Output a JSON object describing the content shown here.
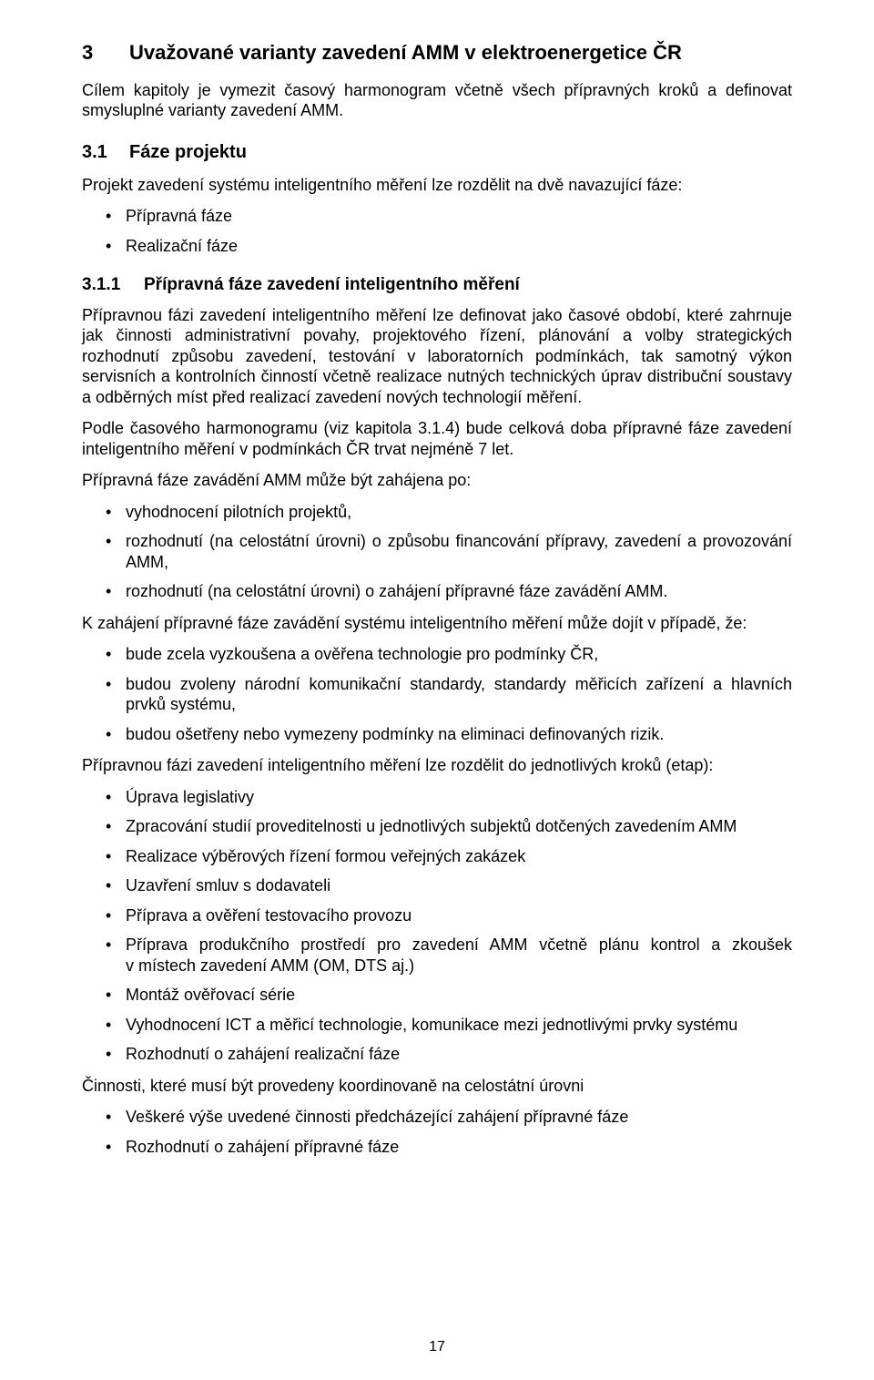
{
  "pageNumber": "17",
  "heading1": {
    "num": "3",
    "text": "Uvažované varianty zavedení AMM v elektroenergetice ČR"
  },
  "intro": "Cílem kapitoly je vymezit časový harmonogram včetně všech přípravných kroků a definovat smysluplné varianty zavedení AMM.",
  "heading2": {
    "num": "3.1",
    "text": "Fáze projektu"
  },
  "para2": "Projekt zavedení systému inteligentního měření lze rozdělit na dvě navazující fáze:",
  "phases": [
    "Přípravná fáze",
    "Realizační fáze"
  ],
  "heading3": {
    "num": "3.1.1",
    "text": "Přípravná fáze zavedení inteligentního měření"
  },
  "para3a": "Přípravnou fázi zavedení inteligentního měření lze definovat jako časové období, které zahrnuje jak činnosti administrativní povahy, projektového řízení, plánování a volby strategických rozhodnutí způsobu zavedení, testování v laboratorních podmínkách, tak samotný výkon servisních a kontrolních činností včetně realizace nutných technických úprav distribuční soustavy a odběrných míst před realizací zavedení nových technologií měření.",
  "para3b": "Podle časového harmonogramu (viz kapitola 3.1.4) bude celková doba přípravné fáze zavedení inteligentního měření v podmínkách ČR trvat nejméně 7 let.",
  "para3c": "Přípravná fáze zavádění AMM může být zahájena po:",
  "conditionsA": [
    "vyhodnocení pilotních projektů,",
    "rozhodnutí (na celostátní úrovni) o způsobu financování přípravy, zavedení a provozování AMM,",
    "rozhodnutí (na celostátní úrovni) o zahájení přípravné fáze zavádění AMM."
  ],
  "para3d": "K zahájení přípravné fáze zavádění systému inteligentního měření může dojít v případě, že:",
  "conditionsB": [
    "bude zcela vyzkoušena a ověřena technologie pro podmínky ČR,",
    "budou zvoleny národní komunikační standardy, standardy měřicích zařízení a hlavních prvků systému,",
    "budou ošetřeny nebo vymezeny podmínky na eliminaci definovaných rizik."
  ],
  "para3e": "Přípravnou fázi zavedení inteligentního měření lze rozdělit do jednotlivých kroků (etap):",
  "steps": [
    "Úprava legislativy",
    "Zpracování studií proveditelnosti u jednotlivých subjektů dotčených zavedením AMM",
    "Realizace výběrových řízení formou veřejných zakázek",
    "Uzavření smluv s dodavateli",
    "Příprava a ověření testovacího provozu",
    "Příprava produkčního prostředí pro zavedení AMM včetně plánu kontrol a zkoušek v místech zavedení AMM (OM, DTS aj.)",
    "Montáž ověřovací série",
    "Vyhodnocení ICT a měřicí technologie, komunikace mezi jednotlivými prvky systému",
    "Rozhodnutí o zahájení realizační fáze"
  ],
  "para3f": "Činnosti, které musí být provedeny koordinovaně na celostátní úrovni",
  "coordinated": [
    "Veškeré výše uvedené činnosti předcházející zahájení přípravné fáze",
    "Rozhodnutí o zahájení přípravné fáze"
  ]
}
